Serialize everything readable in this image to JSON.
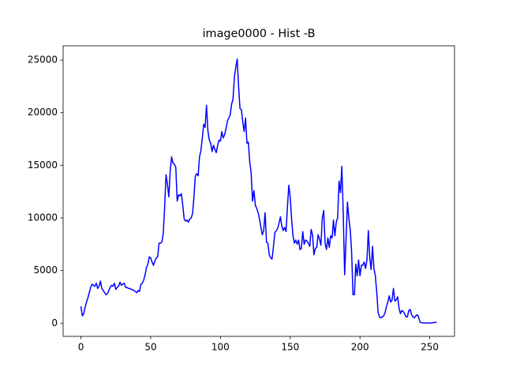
{
  "chart_data": {
    "type": "line",
    "title": "image0000 - Hist -B",
    "color": "#0000ff",
    "x": [
      0,
      1,
      2,
      3,
      4,
      5,
      6,
      7,
      8,
      9,
      10,
      11,
      12,
      13,
      14,
      15,
      16,
      17,
      18,
      19,
      20,
      21,
      22,
      23,
      24,
      25,
      26,
      27,
      28,
      29,
      30,
      31,
      32,
      33,
      34,
      35,
      36,
      37,
      38,
      39,
      40,
      41,
      42,
      43,
      44,
      45,
      46,
      47,
      48,
      49,
      50,
      51,
      52,
      53,
      54,
      55,
      56,
      57,
      58,
      59,
      60,
      61,
      62,
      63,
      64,
      65,
      66,
      67,
      68,
      69,
      70,
      71,
      72,
      73,
      74,
      75,
      76,
      77,
      78,
      79,
      80,
      81,
      82,
      83,
      84,
      85,
      86,
      87,
      88,
      89,
      90,
      91,
      92,
      93,
      94,
      95,
      96,
      97,
      98,
      99,
      100,
      101,
      102,
      103,
      104,
      105,
      106,
      107,
      108,
      109,
      110,
      111,
      112,
      113,
      114,
      115,
      116,
      117,
      118,
      119,
      120,
      121,
      122,
      123,
      124,
      125,
      126,
      127,
      128,
      129,
      130,
      131,
      132,
      133,
      134,
      135,
      136,
      137,
      138,
      139,
      140,
      141,
      142,
      143,
      144,
      145,
      146,
      147,
      148,
      149,
      150,
      151,
      152,
      153,
      154,
      155,
      156,
      157,
      158,
      159,
      160,
      161,
      162,
      163,
      164,
      165,
      166,
      167,
      168,
      169,
      170,
      171,
      172,
      173,
      174,
      175,
      176,
      177,
      178,
      179,
      180,
      181,
      182,
      183,
      184,
      185,
      186,
      187,
      188,
      189,
      190,
      191,
      192,
      193,
      194,
      195,
      196,
      197,
      198,
      199,
      200,
      201,
      202,
      203,
      204,
      205,
      206,
      207,
      208,
      209,
      210,
      211,
      212,
      213,
      214,
      215,
      216,
      217,
      218,
      219,
      220,
      221,
      222,
      223,
      224,
      225,
      226,
      227,
      228,
      229,
      230,
      231,
      232,
      233,
      234,
      235,
      236,
      237,
      238,
      239,
      240,
      241,
      242,
      243,
      244,
      245,
      246,
      247,
      248,
      249,
      250,
      251,
      252,
      253,
      254,
      255
    ],
    "values": [
      1600,
      700,
      900,
      1500,
      2000,
      2400,
      2900,
      3400,
      3700,
      3600,
      3500,
      3800,
      3300,
      3500,
      4000,
      3300,
      3100,
      2900,
      2700,
      2800,
      3100,
      3400,
      3600,
      3500,
      3800,
      3200,
      3400,
      3500,
      3900,
      3600,
      3700,
      3800,
      3400,
      3400,
      3300,
      3300,
      3200,
      3200,
      3100,
      3000,
      2900,
      3100,
      3000,
      3700,
      3800,
      4100,
      4600,
      5300,
      5600,
      6300,
      6200,
      5800,
      5500,
      5900,
      6200,
      6300,
      7600,
      7600,
      7700,
      8500,
      11000,
      14100,
      13200,
      12000,
      14500,
      15800,
      15200,
      15100,
      14800,
      11600,
      12200,
      12100,
      12300,
      11200,
      9900,
      9700,
      9800,
      9600,
      9900,
      10000,
      10400,
      12000,
      14000,
      14200,
      14000,
      15800,
      16400,
      17600,
      18900,
      18600,
      20700,
      18300,
      17400,
      17100,
      16300,
      16900,
      16500,
      16200,
      16900,
      17400,
      17300,
      18200,
      17600,
      17900,
      18500,
      19200,
      19500,
      19800,
      20800,
      21300,
      23400,
      24300,
      25100,
      22500,
      20400,
      20300,
      19100,
      18200,
      19500,
      17100,
      17200,
      15300,
      14300,
      11600,
      12600,
      11200,
      10900,
      10500,
      9900,
      9100,
      8400,
      8800,
      10500,
      7700,
      7600,
      6500,
      6200,
      6100,
      7300,
      8600,
      8800,
      9000,
      9500,
      10100,
      9200,
      8800,
      9100,
      8700,
      11000,
      13100,
      12000,
      9900,
      8300,
      7600,
      7900,
      7500,
      7900,
      7000,
      7100,
      8700,
      7500,
      7900,
      7800,
      7600,
      7300,
      8900,
      8400,
      6500,
      7100,
      7200,
      8400,
      8000,
      7400,
      10000,
      10700,
      7600,
      7000,
      8100,
      7200,
      8300,
      8100,
      9800,
      8300,
      9600,
      10000,
      13500,
      12400,
      14900,
      10500,
      4600,
      7800,
      11500,
      10000,
      8900,
      6800,
      2700,
      2700,
      5600,
      4500,
      6000,
      4500,
      5500,
      5500,
      5800,
      5200,
      6000,
      8800,
      6200,
      5100,
      7300,
      5200,
      4500,
      3000,
      1000,
      600,
      500,
      600,
      700,
      1000,
      1600,
      2000,
      2600,
      2000,
      2200,
      3300,
      2100,
      2200,
      2500,
      1400,
      900,
      1200,
      1100,
      900,
      600,
      600,
      1200,
      1300,
      800,
      600,
      500,
      700,
      800,
      600,
      100,
      50,
      30,
      20,
      10,
      10,
      10,
      10,
      20,
      40,
      60,
      80,
      70
    ],
    "xlim": [
      -12.75,
      267.75
    ],
    "ylim": [
      -1255,
      26355
    ],
    "xticks": [
      0,
      50,
      100,
      150,
      200,
      250
    ],
    "yticks": [
      0,
      5000,
      10000,
      15000,
      20000,
      25000
    ]
  }
}
